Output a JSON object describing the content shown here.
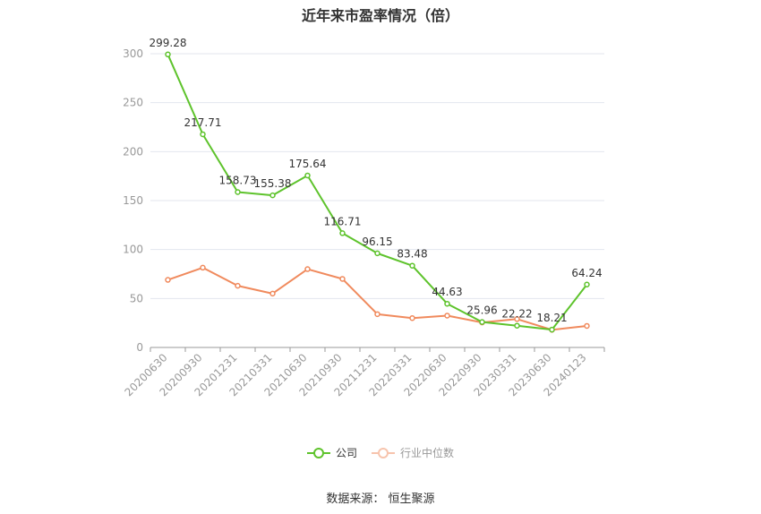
{
  "chart_data": {
    "type": "line",
    "title": "近年来市盈率情况（倍）",
    "categories": [
      "20200630",
      "20200930",
      "20201231",
      "20210331",
      "20210630",
      "20210930",
      "20211231",
      "20220331",
      "20220630",
      "20220930",
      "20230331",
      "20230630",
      "20240123"
    ],
    "series": [
      {
        "name": "公司",
        "color": "#5ec32c",
        "values": [
          299.28,
          217.71,
          158.73,
          155.38,
          175.64,
          116.71,
          96.15,
          83.48,
          44.63,
          25.96,
          22.22,
          18.21,
          64.24
        ],
        "labels": [
          "299.28",
          "217.71",
          "158.73",
          "155.38",
          "175.64",
          "116.71",
          "96.15",
          "83.48",
          "44.63",
          "25.96",
          "22.22",
          "18.21",
          "64.24"
        ]
      },
      {
        "name": "行业中位数",
        "color": "#f08a5d",
        "values": [
          69,
          81.5,
          63,
          55,
          80,
          70,
          34,
          30,
          32.5,
          25.5,
          29,
          18,
          22
        ]
      }
    ],
    "yticks": [
      "0",
      "50",
      "100",
      "150",
      "200",
      "250",
      "300"
    ],
    "ylim": [
      0,
      300
    ],
    "grid": true,
    "legend_position": "bottom"
  },
  "source": "数据来源：  恒生聚源"
}
